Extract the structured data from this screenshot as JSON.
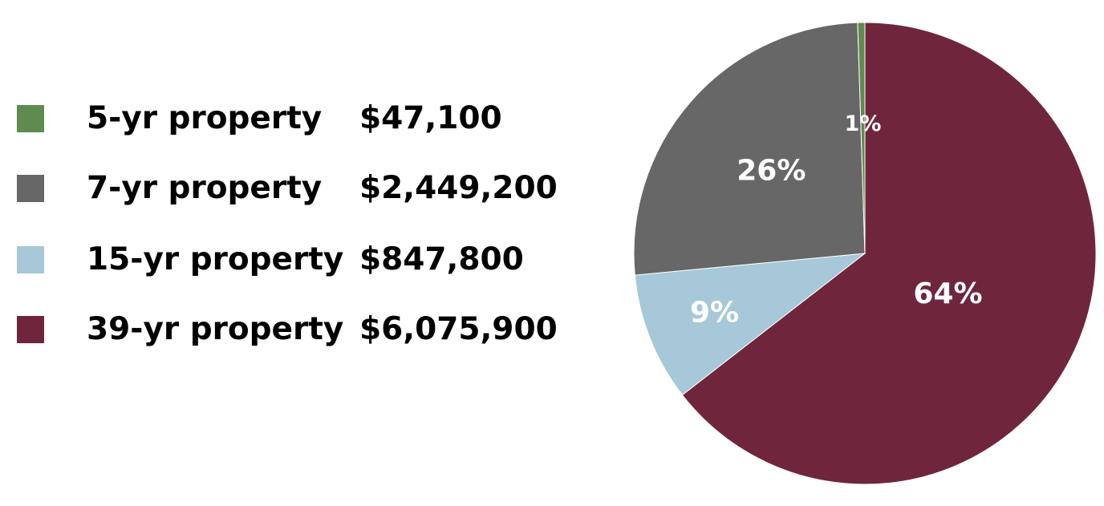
{
  "chart_data": {
    "type": "pie",
    "title": "",
    "legend_position": "left",
    "series": [
      {
        "name": "",
        "categories": [
          "5-yr property",
          "7-yr property",
          "15-yr property",
          "39-yr property"
        ],
        "values": [
          47100,
          2449200,
          847800,
          6075900
        ],
        "value_labels": [
          "$47,100",
          "$2,449,200",
          "$847,800",
          "$6,075,900"
        ],
        "percent_labels": [
          "1%",
          "26%",
          "9%",
          "64%"
        ],
        "colors": [
          "#5e8b4e",
          "#676767",
          "#a6c8d8",
          "#6f263d"
        ]
      }
    ]
  }
}
